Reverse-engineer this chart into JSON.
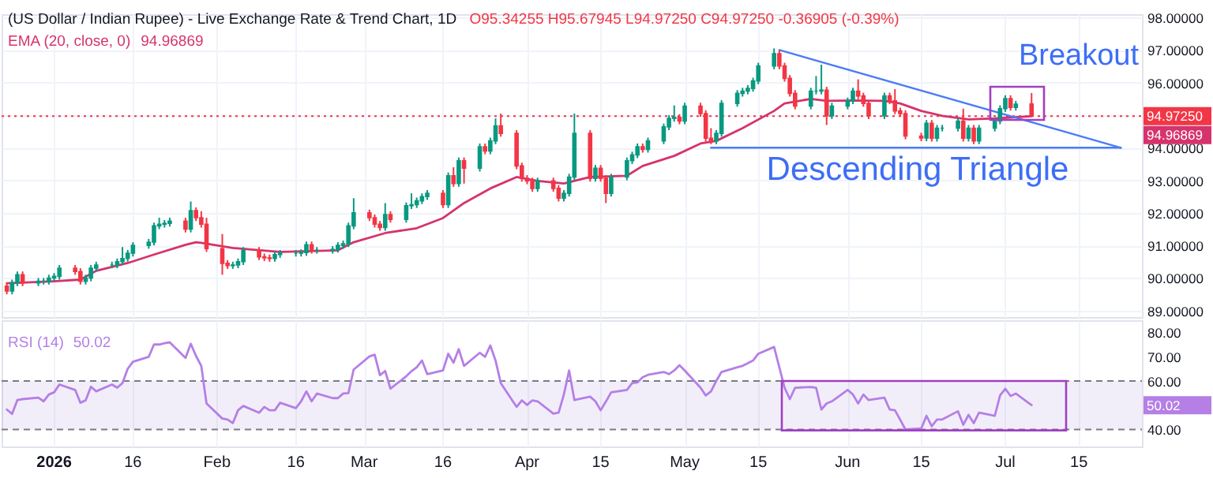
{
  "chart_data": [
    {
      "type": "candlestick",
      "title": "(US Dollar / Indian Rupee) - Live Exchange Rate & Trend Chart, 1D",
      "annotations": [
        "O95.34255 H95.67945 L94.97250 C94.97250 -0.36905 (-0.39%)",
        "94.96869",
        "94.96869",
        "Breakout",
        "Descending Triangle"
      ],
      "x": [
        "2025-12-23",
        "2025-12-24",
        "2025-12-25",
        "2025-12-26",
        "2025-12-29",
        "2025-12-30",
        "2025-12-31",
        "2026-01-01",
        "2026-01-02",
        "2026-01-05",
        "2026-01-06",
        "2026-01-07",
        "2026-01-08",
        "2026-01-09",
        "2026-01-12",
        "2026-01-13",
        "2026-01-14",
        "2026-01-15",
        "2026-01-16",
        "2026-01-19",
        "2026-01-20",
        "2026-01-21",
        "2026-01-22",
        "2026-01-23",
        "2026-01-26",
        "2026-01-27",
        "2026-01-28",
        "2026-01-29",
        "2026-01-30",
        "2026-02-02",
        "2026-02-03",
        "2026-02-04",
        "2026-02-05",
        "2026-02-06",
        "2026-02-09",
        "2026-02-10",
        "2026-02-11",
        "2026-02-12",
        "2026-02-13",
        "2026-02-16",
        "2026-02-17",
        "2026-02-18",
        "2026-02-19",
        "2026-02-20",
        "2026-02-23",
        "2026-02-24",
        "2026-02-25",
        "2026-02-26",
        "2026-02-27",
        "2026-03-02",
        "2026-03-03",
        "2026-03-04",
        "2026-03-05",
        "2026-03-06",
        "2026-03-09",
        "2026-03-10",
        "2026-03-11",
        "2026-03-12",
        "2026-03-13",
        "2026-03-16",
        "2026-03-17",
        "2026-03-18",
        "2026-03-19",
        "2026-03-20",
        "2026-03-23",
        "2026-03-24",
        "2026-03-25",
        "2026-03-26",
        "2026-03-27",
        "2026-03-30",
        "2026-03-31",
        "2026-04-01",
        "2026-04-02",
        "2026-04-03",
        "2026-04-06",
        "2026-04-07",
        "2026-04-08",
        "2026-04-09",
        "2026-04-10",
        "2026-04-13",
        "2026-04-14",
        "2026-04-15",
        "2026-04-16",
        "2026-04-17",
        "2026-04-20",
        "2026-04-21",
        "2026-04-22",
        "2026-04-23",
        "2026-04-24",
        "2026-04-27",
        "2026-04-28",
        "2026-04-29",
        "2026-04-30",
        "2026-05-01",
        "2026-05-04",
        "2026-05-05",
        "2026-05-06",
        "2026-05-07",
        "2026-05-08",
        "2026-05-11",
        "2026-05-12",
        "2026-05-13",
        "2026-05-14",
        "2026-05-15",
        "2026-05-18",
        "2026-05-19",
        "2026-05-20",
        "2026-05-21",
        "2026-05-22",
        "2026-05-25",
        "2026-05-26",
        "2026-05-27",
        "2026-05-28",
        "2026-05-29",
        "2026-06-01",
        "2026-06-02",
        "2026-06-03",
        "2026-06-04",
        "2026-06-05",
        "2026-06-08",
        "2026-06-09",
        "2026-06-10",
        "2026-06-11",
        "2026-06-12",
        "2026-06-15",
        "2026-06-16",
        "2026-06-17",
        "2026-06-18",
        "2026-06-19",
        "2026-06-22",
        "2026-06-23",
        "2026-06-24",
        "2026-06-25",
        "2026-06-26",
        "2026-06-29",
        "2026-06-30",
        "2026-07-01",
        "2026-07-02",
        "2026-07-03",
        "2026-07-06"
      ],
      "ohlc": [
        [
          89.75,
          89.85,
          89.5,
          89.6
        ],
        [
          89.6,
          89.95,
          89.5,
          89.85
        ],
        [
          89.85,
          90.2,
          89.75,
          90.1
        ],
        [
          90.1,
          90.2,
          89.75,
          89.85
        ],
        [
          89.85,
          90.0,
          89.75,
          89.9
        ],
        [
          89.9,
          90.0,
          89.8,
          89.9
        ],
        [
          89.9,
          90.1,
          89.8,
          90.0
        ],
        [
          90.0,
          90.15,
          89.9,
          90.05
        ],
        [
          90.05,
          90.4,
          89.95,
          90.3
        ],
        [
          90.3,
          90.4,
          90.1,
          90.2
        ],
        [
          90.2,
          90.3,
          89.8,
          89.9
        ],
        [
          89.9,
          90.1,
          89.8,
          90.0
        ],
        [
          90.0,
          90.4,
          89.9,
          90.3
        ],
        [
          90.3,
          90.5,
          90.2,
          90.4
        ],
        [
          90.4,
          90.5,
          90.3,
          90.4
        ],
        [
          90.4,
          90.6,
          90.3,
          90.5
        ],
        [
          90.5,
          90.95,
          90.4,
          90.6
        ],
        [
          90.6,
          90.86,
          90.5,
          90.76
        ],
        [
          90.76,
          91.1,
          90.66,
          91.0
        ],
        [
          91.0,
          91.2,
          90.9,
          91.1
        ],
        [
          91.1,
          91.7,
          91.0,
          91.6
        ],
        [
          91.6,
          91.85,
          91.5,
          91.65
        ],
        [
          91.65,
          91.78,
          91.55,
          91.68
        ],
        [
          91.68,
          91.85,
          91.58,
          91.75
        ],
        [
          91.75,
          91.85,
          91.4,
          91.5
        ],
        [
          91.5,
          92.35,
          91.4,
          92.07
        ],
        [
          92.07,
          92.17,
          91.75,
          91.85
        ],
        [
          91.85,
          92.05,
          91.55,
          91.65
        ],
        [
          91.65,
          91.85,
          90.8,
          90.9
        ],
        [
          90.9,
          91.35,
          90.1,
          90.45
        ],
        [
          90.45,
          90.55,
          90.28,
          90.38
        ],
        [
          90.38,
          90.5,
          90.28,
          90.4
        ],
        [
          90.4,
          90.6,
          90.3,
          90.5
        ],
        [
          90.5,
          90.95,
          90.4,
          90.85
        ],
        [
          90.85,
          90.95,
          90.55,
          90.65
        ],
        [
          90.65,
          90.75,
          90.52,
          90.62
        ],
        [
          90.62,
          90.72,
          90.5,
          90.6
        ],
        [
          90.6,
          90.82,
          90.5,
          90.72
        ],
        [
          90.72,
          90.86,
          90.62,
          90.76
        ],
        [
          90.76,
          90.86,
          90.66,
          90.76
        ],
        [
          90.76,
          90.88,
          90.66,
          90.78
        ],
        [
          90.78,
          91.12,
          90.68,
          91.02
        ],
        [
          91.02,
          91.12,
          90.75,
          90.85
        ],
        [
          90.85,
          90.95,
          90.75,
          90.85
        ],
        [
          90.85,
          90.98,
          90.75,
          90.88
        ],
        [
          90.88,
          91.1,
          90.78,
          91.0
        ],
        [
          91.0,
          91.15,
          90.9,
          91.05
        ],
        [
          91.05,
          91.7,
          90.95,
          91.6
        ],
        [
          91.6,
          92.45,
          91.5,
          92.0
        ],
        [
          92.0,
          92.1,
          91.75,
          91.85
        ],
        [
          91.85,
          91.95,
          91.55,
          91.65
        ],
        [
          91.65,
          91.75,
          91.45,
          91.55
        ],
        [
          91.55,
          92.3,
          91.45,
          91.95
        ],
        [
          91.95,
          92.05,
          91.7,
          91.8
        ],
        [
          91.8,
          92.32,
          91.7,
          92.22
        ],
        [
          92.22,
          92.6,
          92.12,
          92.25
        ],
        [
          92.25,
          92.47,
          92.15,
          92.37
        ],
        [
          92.37,
          92.6,
          92.27,
          92.5
        ],
        [
          92.5,
          92.7,
          92.4,
          92.6
        ],
        [
          92.6,
          92.7,
          92.15,
          92.25
        ],
        [
          92.25,
          93.24,
          92.15,
          93.14
        ],
        [
          93.14,
          93.4,
          92.8,
          92.9
        ],
        [
          92.9,
          93.7,
          92.8,
          93.6
        ],
        [
          93.6,
          93.7,
          92.9,
          93.37
        ],
        [
          93.37,
          94.13,
          93.27,
          94.03
        ],
        [
          94.03,
          94.13,
          93.8,
          93.9
        ],
        [
          93.9,
          94.31,
          93.8,
          94.21
        ],
        [
          94.21,
          94.9,
          94.11,
          94.67
        ],
        [
          94.67,
          95.05,
          94.34,
          94.44
        ],
        [
          94.44,
          94.54,
          93.34,
          93.44
        ],
        [
          93.44,
          93.54,
          92.96,
          93.06
        ],
        [
          93.06,
          93.16,
          92.88,
          92.98
        ],
        [
          92.98,
          93.08,
          92.65,
          92.75
        ],
        [
          92.75,
          93.08,
          92.65,
          92.98
        ],
        [
          92.98,
          93.08,
          92.65,
          92.75
        ],
        [
          92.75,
          92.85,
          92.35,
          92.45
        ],
        [
          92.45,
          92.7,
          92.35,
          92.6
        ],
        [
          92.6,
          93.2,
          92.5,
          93.1
        ],
        [
          93.1,
          95.05,
          93.0,
          94.44
        ],
        [
          94.44,
          94.54,
          92.96,
          93.06
        ],
        [
          93.06,
          93.47,
          92.96,
          93.37
        ],
        [
          93.37,
          93.47,
          92.96,
          93.06
        ],
        [
          93.06,
          93.16,
          92.3,
          92.6
        ],
        [
          92.6,
          93.2,
          92.5,
          93.1
        ],
        [
          93.1,
          93.7,
          93.0,
          93.6
        ],
        [
          93.6,
          93.88,
          93.5,
          93.78
        ],
        [
          93.78,
          94.13,
          93.68,
          94.03
        ],
        [
          94.03,
          94.13,
          93.85,
          93.95
        ],
        [
          93.95,
          94.31,
          93.85,
          94.21
        ],
        [
          94.21,
          94.74,
          94.11,
          94.64
        ],
        [
          94.64,
          95.0,
          94.54,
          94.9
        ],
        [
          94.9,
          95.3,
          94.8,
          94.93
        ],
        [
          94.93,
          95.03,
          94.72,
          94.82
        ],
        [
          94.82,
          95.38,
          94.72,
          95.28
        ],
        [
          95.28,
          95.38,
          94.95,
          95.05
        ],
        [
          95.05,
          95.15,
          94.19,
          94.29
        ],
        [
          94.29,
          94.6,
          94.11,
          94.21
        ],
        [
          94.21,
          94.54,
          94.11,
          94.44
        ],
        [
          94.44,
          95.46,
          94.34,
          95.36
        ],
        [
          95.36,
          95.77,
          95.26,
          95.67
        ],
        [
          95.67,
          95.84,
          95.57,
          95.74
        ],
        [
          95.74,
          95.92,
          95.64,
          95.82
        ],
        [
          95.82,
          96.15,
          95.72,
          96.05
        ],
        [
          96.05,
          96.61,
          95.95,
          96.51
        ],
        [
          96.51,
          97.05,
          96.41,
          96.89
        ],
        [
          96.89,
          96.99,
          96.41,
          96.51
        ],
        [
          96.51,
          96.61,
          96.03,
          96.13
        ],
        [
          96.13,
          96.23,
          95.57,
          95.67
        ],
        [
          95.67,
          95.77,
          95.18,
          95.28
        ],
        [
          95.28,
          95.84,
          95.18,
          95.74
        ],
        [
          95.74,
          96.2,
          95.64,
          95.74
        ],
        [
          95.74,
          96.55,
          95.64,
          95.77
        ],
        [
          95.77,
          95.87,
          94.7,
          94.98
        ],
        [
          94.98,
          95.38,
          94.88,
          95.28
        ],
        [
          95.28,
          95.54,
          95.18,
          95.44
        ],
        [
          95.44,
          95.84,
          95.34,
          95.74
        ],
        [
          95.74,
          96.1,
          95.49,
          95.59
        ],
        [
          95.59,
          95.69,
          95.26,
          95.36
        ],
        [
          95.36,
          95.46,
          94.88,
          94.98
        ],
        [
          94.98,
          95.69,
          94.88,
          95.59
        ],
        [
          95.59,
          95.69,
          95.34,
          95.44
        ],
        [
          95.44,
          95.8,
          95.03,
          95.13
        ],
        [
          95.13,
          95.23,
          94.95,
          95.05
        ],
        [
          95.05,
          95.15,
          94.26,
          94.36
        ],
        [
          94.36,
          94.46,
          94.2,
          94.3
        ],
        [
          94.3,
          94.85,
          94.2,
          94.75
        ],
        [
          94.75,
          94.85,
          94.19,
          94.29
        ],
        [
          94.29,
          94.7,
          94.19,
          94.6
        ],
        [
          94.6,
          94.7,
          94.5,
          94.6
        ],
        [
          94.6,
          94.92,
          94.5,
          94.82
        ],
        [
          94.82,
          95.2,
          94.19,
          94.29
        ],
        [
          94.29,
          94.7,
          94.19,
          94.6
        ],
        [
          94.6,
          94.7,
          94.11,
          94.21
        ],
        [
          94.21,
          94.7,
          94.11,
          94.6
        ],
        [
          94.6,
          94.92,
          94.5,
          94.82
        ],
        [
          94.82,
          95.3,
          94.72,
          95.2
        ],
        [
          95.2,
          95.61,
          95.1,
          95.51
        ],
        [
          95.51,
          95.61,
          95.14,
          95.24
        ],
        [
          95.24,
          95.44,
          95.14,
          95.34
        ],
        [
          95.34255,
          95.67945,
          94.9725,
          94.9725
        ]
      ],
      "colors": [
        "#f23645",
        "#089981",
        "#089981",
        "#f23645",
        "#089981",
        "#089981",
        "#089981",
        "#089981",
        "#089981",
        "#f23645",
        "#f23645",
        "#089981",
        "#089981",
        "#089981",
        "#089981",
        "#089981",
        "#089981",
        "#089981",
        "#089981",
        "#089981",
        "#089981",
        "#089981",
        "#089981",
        "#089981",
        "#f23645",
        "#089981",
        "#f23645",
        "#f23645",
        "#f23645",
        "#f23645",
        "#f23645",
        "#089981",
        "#089981",
        "#089981",
        "#f23645",
        "#f23645",
        "#f23645",
        "#089981",
        "#089981",
        "#089981",
        "#089981",
        "#089981",
        "#f23645",
        "#089981",
        "#089981",
        "#089981",
        "#089981",
        "#089981",
        "#089981",
        "#f23645",
        "#f23645",
        "#f23645",
        "#089981",
        "#f23645",
        "#089981",
        "#089981",
        "#089981",
        "#089981",
        "#089981",
        "#f23645",
        "#089981",
        "#f23645",
        "#089981",
        "#f23645",
        "#089981",
        "#f23645",
        "#089981",
        "#089981",
        "#f23645",
        "#f23645",
        "#f23645",
        "#f23645",
        "#f23645",
        "#089981",
        "#f23645",
        "#f23645",
        "#089981",
        "#089981",
        "#089981",
        "#f23645",
        "#089981",
        "#f23645",
        "#f23645",
        "#089981",
        "#089981",
        "#089981",
        "#089981",
        "#f23645",
        "#089981",
        "#089981",
        "#089981",
        "#089981",
        "#f23645",
        "#089981",
        "#f23645",
        "#f23645",
        "#f23645",
        "#089981",
        "#089981",
        "#089981",
        "#089981",
        "#089981",
        "#089981",
        "#089981",
        "#089981",
        "#f23645",
        "#f23645",
        "#f23645",
        "#f23645",
        "#089981",
        "#089981",
        "#089981",
        "#f23645",
        "#089981",
        "#089981",
        "#089981",
        "#f23645",
        "#f23645",
        "#f23645",
        "#089981",
        "#f23645",
        "#f23645",
        "#f23645",
        "#f23645",
        "#f23645",
        "#089981",
        "#f23645",
        "#089981",
        "#089981",
        "#089981",
        "#f23645",
        "#089981",
        "#f23645",
        "#089981",
        "#089981",
        "#089981",
        "#089981",
        "#f23645",
        "#089981",
        "#f23645"
      ],
      "series": [
        {
          "name": "EMA (20, close, 0)",
          "type": "line",
          "color": "#d6336c",
          "x": [
            "2025-12-23",
            "2026-01-01",
            "2026-01-06",
            "2026-01-09",
            "2026-01-15",
            "2026-01-20",
            "2026-01-26",
            "2026-01-28",
            "2026-01-29",
            "2026-02-04",
            "2026-02-13",
            "2026-02-24",
            "2026-02-27",
            "2026-03-05",
            "2026-03-11",
            "2026-03-16",
            "2026-03-20",
            "2026-03-25",
            "2026-03-30",
            "2026-04-03",
            "2026-04-08",
            "2026-04-13",
            "2026-04-20",
            "2026-04-23",
            "2026-04-29",
            "2026-05-04",
            "2026-05-07",
            "2026-05-12",
            "2026-05-18",
            "2026-05-20",
            "2026-05-25",
            "2026-05-28",
            "2026-06-02",
            "2026-06-08",
            "2026-06-11",
            "2026-06-15",
            "2026-06-19",
            "2026-06-24",
            "2026-06-29",
            "2026-07-06"
          ],
          "values": [
            89.84,
            89.9,
            89.95,
            90.22,
            90.46,
            90.72,
            91.02,
            91.1,
            91.08,
            90.92,
            90.8,
            90.85,
            91.1,
            91.38,
            91.53,
            91.84,
            92.3,
            92.75,
            93.1,
            92.98,
            92.9,
            93.1,
            93.14,
            93.44,
            93.75,
            94.13,
            94.21,
            94.6,
            95.13,
            95.36,
            95.5,
            95.44,
            95.45,
            95.44,
            95.36,
            95.13,
            94.98,
            94.87,
            94.9,
            94.96869
          ]
        },
        {
          "type": "line",
          "color": "#4c7cf6",
          "x": [
            "2026-05-19",
            "2026-07-23"
          ],
          "values": [
            97.0,
            94.0
          ]
        },
        {
          "type": "line",
          "color": "#4c7cf6",
          "x": [
            "2026-05-06",
            "2026-07-23"
          ],
          "values": [
            94.0,
            94.0
          ]
        }
      ],
      "ref_lines": [
        {
          "axis": "y",
          "value": 94.9725,
          "label": "94.97250",
          "color": "#f23645",
          "line_style": "dotted"
        }
      ],
      "xlim": [
        "2025-12-22",
        "2026-07-27"
      ],
      "xticks": [
        {
          "value": "2026-01-01",
          "label": null
        },
        {
          "value": "2026-01-16",
          "label": null
        },
        {
          "value": "2026-02-01",
          "label": null
        },
        {
          "value": "2026-02-16",
          "label": null
        },
        {
          "value": "2026-03-01",
          "label": null
        },
        {
          "value": "2026-03-16",
          "label": null
        },
        {
          "value": "2026-04-01",
          "label": null
        },
        {
          "value": "2026-04-15",
          "label": null
        },
        {
          "value": "2026-05-01",
          "label": null
        },
        {
          "value": "2026-05-15",
          "label": null
        },
        {
          "value": "2026-06-01",
          "label": null
        },
        {
          "value": "2026-06-15",
          "label": null
        },
        {
          "value": "2026-07-01",
          "label": null
        },
        {
          "value": "2026-07-15",
          "label": null
        }
      ],
      "ylim": [
        88.8,
        98.1
      ],
      "yticks": [
        {
          "value": 89,
          "label": "89.00000"
        },
        {
          "value": 90,
          "label": "90.00000"
        },
        {
          "value": 91,
          "label": "91.00000"
        },
        {
          "value": 92,
          "label": "92.00000"
        },
        {
          "value": 93,
          "label": "93.00000"
        },
        {
          "value": 94,
          "label": "94.00000"
        },
        {
          "value": 95,
          "label": null
        },
        {
          "value": 96,
          "label": "96.00000"
        },
        {
          "value": 97,
          "label": "97.00000"
        },
        {
          "value": 98,
          "label": "98.00000"
        }
      ],
      "grid": true,
      "legend": "top left",
      "tick_labels": "y"
    },
    {
      "type": "line",
      "annotations": [
        "50.02",
        "50.02"
      ],
      "x": [
        "2025-12-23",
        "2025-12-24",
        "2025-12-25",
        "2025-12-26",
        "2025-12-29",
        "2025-12-30",
        "2025-12-31",
        "2026-01-01",
        "2026-01-02",
        "2026-01-05",
        "2026-01-06",
        "2026-01-07",
        "2026-01-08",
        "2026-01-09",
        "2026-01-12",
        "2026-01-13",
        "2026-01-14",
        "2026-01-15",
        "2026-01-16",
        "2026-01-19",
        "2026-01-20",
        "2026-01-21",
        "2026-01-22",
        "2026-01-23",
        "2026-01-26",
        "2026-01-27",
        "2026-01-28",
        "2026-01-29",
        "2026-01-30",
        "2026-02-02",
        "2026-02-03",
        "2026-02-04",
        "2026-02-05",
        "2026-02-06",
        "2026-02-09",
        "2026-02-10",
        "2026-02-11",
        "2026-02-12",
        "2026-02-13",
        "2026-02-16",
        "2026-02-17",
        "2026-02-18",
        "2026-02-19",
        "2026-02-20",
        "2026-02-23",
        "2026-02-24",
        "2026-02-25",
        "2026-02-26",
        "2026-02-27",
        "2026-03-02",
        "2026-03-03",
        "2026-03-04",
        "2026-03-05",
        "2026-03-06",
        "2026-03-09",
        "2026-03-10",
        "2026-03-11",
        "2026-03-12",
        "2026-03-13",
        "2026-03-16",
        "2026-03-17",
        "2026-03-18",
        "2026-03-19",
        "2026-03-20",
        "2026-03-23",
        "2026-03-24",
        "2026-03-25",
        "2026-03-26",
        "2026-03-27",
        "2026-03-30",
        "2026-03-31",
        "2026-04-01",
        "2026-04-02",
        "2026-04-03",
        "2026-04-06",
        "2026-04-07",
        "2026-04-08",
        "2026-04-09",
        "2026-04-10",
        "2026-04-13",
        "2026-04-14",
        "2026-04-15",
        "2026-04-16",
        "2026-04-17",
        "2026-04-20",
        "2026-04-21",
        "2026-04-22",
        "2026-04-23",
        "2026-04-24",
        "2026-04-27",
        "2026-04-28",
        "2026-04-29",
        "2026-04-30",
        "2026-05-01",
        "2026-05-04",
        "2026-05-05",
        "2026-05-06",
        "2026-05-07",
        "2026-05-08",
        "2026-05-11",
        "2026-05-12",
        "2026-05-13",
        "2026-05-14",
        "2026-05-15",
        "2026-05-18",
        "2026-05-19",
        "2026-05-20",
        "2026-05-21",
        "2026-05-22",
        "2026-05-25",
        "2026-05-26",
        "2026-05-27",
        "2026-05-28",
        "2026-05-29",
        "2026-06-01",
        "2026-06-02",
        "2026-06-03",
        "2026-06-04",
        "2026-06-05",
        "2026-06-08",
        "2026-06-09",
        "2026-06-10",
        "2026-06-11",
        "2026-06-12",
        "2026-06-15",
        "2026-06-16",
        "2026-06-17",
        "2026-06-18",
        "2026-06-19",
        "2026-06-22",
        "2026-06-23",
        "2026-06-24",
        "2026-06-25",
        "2026-06-26",
        "2026-06-29",
        "2026-06-30",
        "2026-07-01",
        "2026-07-02",
        "2026-07-03",
        "2026-07-06"
      ],
      "series": [
        {
          "name": "RSI (14)",
          "color": "#b57fe6",
          "values": [
            48.2,
            46.4,
            52.1,
            52.5,
            53.1,
            51.6,
            54.4,
            55.3,
            58.5,
            56.3,
            51.0,
            52.0,
            57.6,
            55.7,
            58.5,
            57.2,
            59.1,
            65.0,
            67.9,
            69.9,
            75.0,
            75.0,
            75.5,
            75.9,
            69.5,
            75.3,
            70.3,
            66.2,
            50.7,
            44.5,
            44.1,
            42.6,
            47.9,
            49.7,
            46.9,
            49.3,
            47.9,
            47.9,
            51.0,
            48.8,
            51.6,
            55.7,
            51.6,
            54.8,
            52.9,
            52.9,
            54.8,
            55.0,
            64.7,
            70.1,
            70.8,
            62.4,
            64.1,
            56.8,
            61.9,
            64.0,
            65.6,
            68.4,
            62.8,
            64.3,
            71.2,
            67.5,
            73.1,
            66.2,
            71.6,
            69.9,
            74.6,
            68.4,
            59.1,
            49.3,
            52.0,
            50.1,
            52.0,
            51.6,
            46.5,
            46.9,
            54.4,
            64.3,
            52.1,
            53.5,
            51.6,
            47.9,
            51.5,
            55.3,
            56.3,
            59.1,
            59.4,
            61.5,
            62.5,
            63.7,
            62.8,
            64.3,
            66.5,
            64.3,
            57.2,
            54.0,
            55.7,
            60.0,
            63.7,
            65.6,
            66.2,
            67.3,
            68.4,
            71.2,
            74.0,
            65.6,
            57.2,
            52.5,
            57.2,
            57.5,
            57.2,
            48.2,
            50.7,
            51.6,
            56.3,
            54.4,
            50.7,
            54.4,
            52.1,
            53.1,
            48.2,
            47.9,
            44.0,
            40.0,
            40.4,
            45.6,
            41.3,
            44.1,
            44.1,
            47.5,
            41.9,
            46.0,
            42.6,
            46.9,
            45.6,
            54.0,
            56.8,
            53.8,
            54.8,
            50.02
          ]
        }
      ],
      "bands": [
        {
          "axis": "y",
          "from": 40,
          "to": 60,
          "color": "#7e57c2"
        }
      ],
      "ref_lines": [
        {
          "axis": "y",
          "value": 60,
          "color": "#787b86",
          "line_style": "dashed"
        },
        {
          "axis": "y",
          "value": 40,
          "color": "#787b86",
          "line_style": "dashed"
        }
      ],
      "xlim": [
        "2025-12-22",
        "2026-07-27"
      ],
      "xticks": [
        {
          "value": "2026-01-01",
          "label": "2026"
        },
        {
          "value": "2026-01-16",
          "label": "16"
        },
        {
          "value": "2026-02-01",
          "label": "Feb"
        },
        {
          "value": "2026-02-16",
          "label": "16"
        },
        {
          "value": "2026-03-01",
          "label": "Mar"
        },
        {
          "value": "2026-03-16",
          "label": "16"
        },
        {
          "value": "2026-04-01",
          "label": "Apr"
        },
        {
          "value": "2026-04-15",
          "label": "15"
        },
        {
          "value": "2026-05-01",
          "label": "May"
        },
        {
          "value": "2026-05-15",
          "label": "15"
        },
        {
          "value": "2026-06-01",
          "label": "Jun"
        },
        {
          "value": "2026-06-15",
          "label": "15"
        },
        {
          "value": "2026-07-01",
          "label": "Jul"
        },
        {
          "value": "2026-07-15",
          "label": "15"
        }
      ],
      "ylim": [
        33,
        85
      ],
      "yticks": [
        {
          "value": 40,
          "label": "40.00"
        },
        {
          "value": 60,
          "label": "60.00"
        },
        {
          "value": 70,
          "label": "70.00"
        },
        {
          "value": 80,
          "label": "80.00"
        }
      ],
      "grid": "x",
      "legend": "top left"
    }
  ]
}
